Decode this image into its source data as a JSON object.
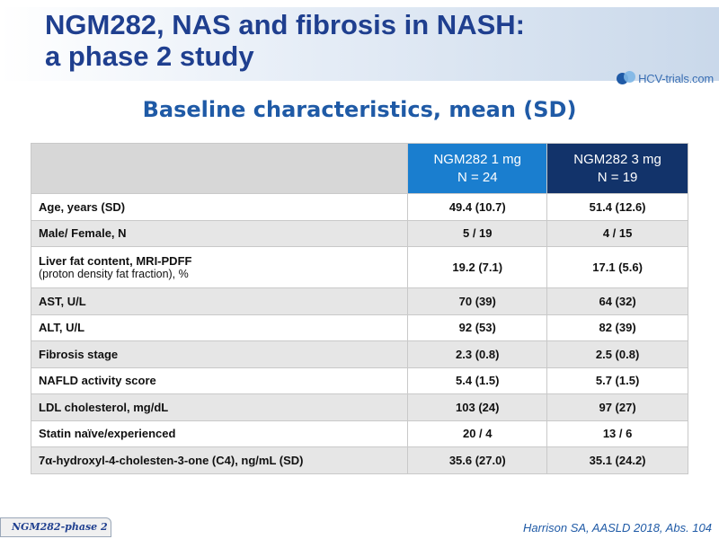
{
  "title": {
    "line1": "NGM282, NAS and fibrosis in NASH:",
    "line2": "a phase 2 study"
  },
  "logo": {
    "text": "HCV-trials.com",
    "icon": "hcv-trials-logo-icon"
  },
  "subtitle": "Baseline characteristics, mean (SD)",
  "table": {
    "columns": [
      {
        "line1": "NGM282 1 mg",
        "line2": "N = 24"
      },
      {
        "line1": "NGM282 3 mg",
        "line2": "N = 19"
      }
    ],
    "rows": [
      {
        "label": "Age, years (SD)",
        "sublabel": "",
        "v1": "49.4 (10.7)",
        "v2": "51.4 (12.6)"
      },
      {
        "label": "Male/ Female, N",
        "sublabel": "",
        "v1": "5 / 19",
        "v2": "4 / 15"
      },
      {
        "label": "Liver fat content, MRI-PDFF",
        "sublabel": "(proton density fat fraction), %",
        "v1": "19.2 (7.1)",
        "v2": "17.1 (5.6)"
      },
      {
        "label": "AST, U/L",
        "sublabel": "",
        "v1": "70 (39)",
        "v2": "64 (32)"
      },
      {
        "label": "ALT, U/L",
        "sublabel": "",
        "v1": "92 (53)",
        "v2": "82 (39)"
      },
      {
        "label": "Fibrosis stage",
        "sublabel": "",
        "v1": "2.3 (0.8)",
        "v2": "2.5 (0.8)"
      },
      {
        "label": "NAFLD activity score",
        "sublabel": "",
        "v1": "5.4 (1.5)",
        "v2": "5.7 (1.5)"
      },
      {
        "label": "LDL cholesterol, mg/dL",
        "sublabel": "",
        "v1": "103 (24)",
        "v2": "97 (27)"
      },
      {
        "label": "Statin naïve/experienced",
        "sublabel": "",
        "v1": "20 / 4",
        "v2": "13 / 6"
      },
      {
        "label": "7α-hydroxyl-4-cholesten-3-one (C4), ng/mL (SD)",
        "sublabel": "",
        "v1": "35.6 (27.0)",
        "v2": "35.1 (24.2)"
      }
    ]
  },
  "footer": {
    "tag": "NGM282-phase 2",
    "citation": "Harrison SA, AASLD 2018, Abs. 104"
  },
  "colors": {
    "title": "#1f3f8f",
    "subtitle": "#1f5aa6",
    "header_1mg": "#1a7ecf",
    "header_3mg": "#12336a",
    "header_empty": "#d7d7d7",
    "row_alt": "#e6e6e6"
  }
}
